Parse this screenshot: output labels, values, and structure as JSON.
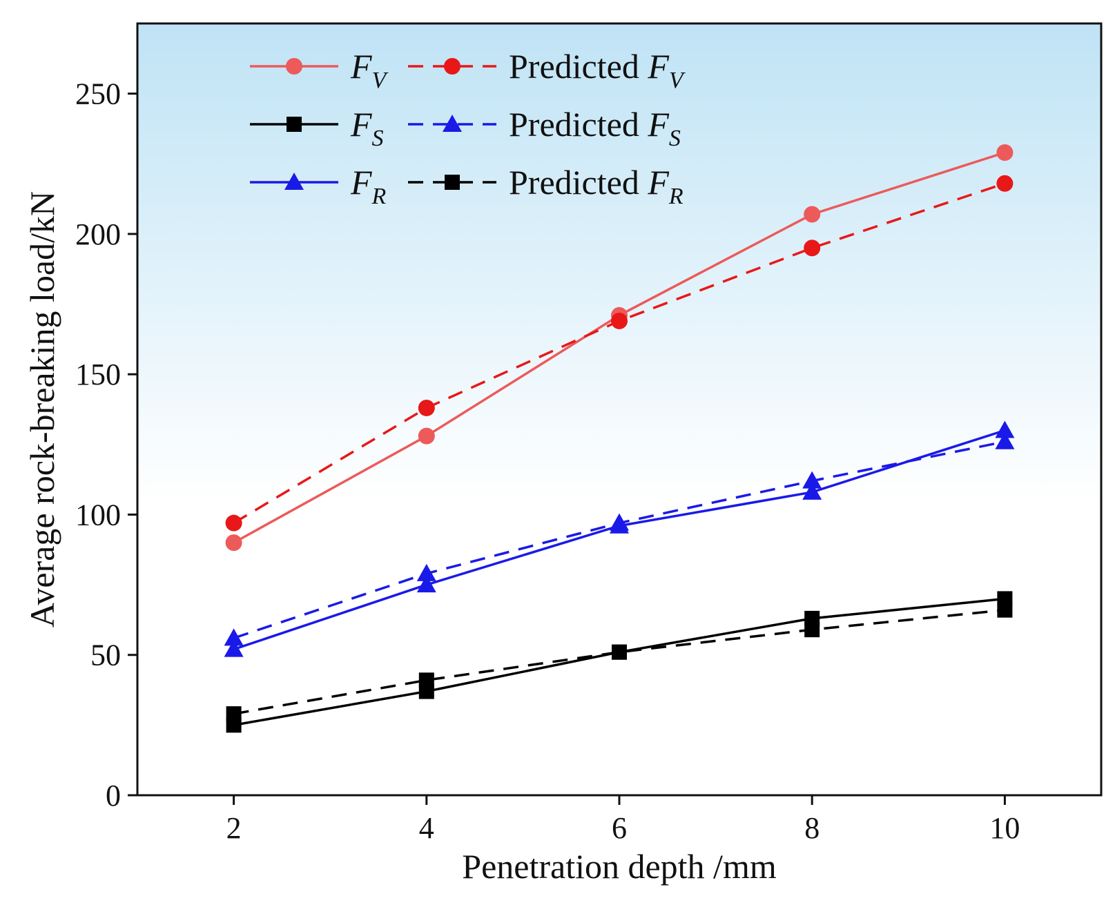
{
  "chart_data": {
    "type": "line",
    "xlabel": "Penetration depth /mm",
    "ylabel": "Average rock-breaking load/kN",
    "xlim": [
      1,
      11
    ],
    "ylim": [
      0,
      275
    ],
    "xticks": [
      2,
      4,
      6,
      8,
      10
    ],
    "yticks": [
      0,
      50,
      100,
      150,
      200,
      250
    ],
    "background": "vertical gradient light blue (#bfe3f5) at top to white at bottom",
    "grid": false,
    "legend_position": "top-left",
    "series": [
      {
        "name": "F_V",
        "symbol": "F",
        "sub": "V",
        "color": "#ec5a5a",
        "dash": "solid",
        "marker": "circle",
        "x": [
          2,
          4,
          6,
          8,
          10
        ],
        "y": [
          90,
          128,
          171,
          207,
          229
        ]
      },
      {
        "name": "Predicted F_V",
        "prefix": "Predicted ",
        "symbol": "F",
        "sub": "V",
        "color": "#e81818",
        "dash": "dashed",
        "marker": "circle",
        "x": [
          2,
          4,
          6,
          8,
          10
        ],
        "y": [
          97,
          138,
          169,
          195,
          218
        ]
      },
      {
        "name": "F_S",
        "symbol": "F",
        "sub": "S",
        "color": "#000000",
        "dash": "solid",
        "marker": "square",
        "x": [
          2,
          4,
          6,
          8,
          10
        ],
        "y": [
          25,
          37,
          51,
          63,
          70
        ]
      },
      {
        "name": "Predicted F_S",
        "prefix": "Predicted ",
        "symbol": "F",
        "sub": "S",
        "color": "#1a1ae8",
        "dash": "dashed",
        "marker": "triangle",
        "x": [
          2,
          4,
          6,
          8,
          10
        ],
        "y": [
          56,
          79,
          97,
          112,
          126
        ]
      },
      {
        "name": "F_R",
        "symbol": "F",
        "sub": "R",
        "color": "#1a1ae8",
        "dash": "solid",
        "marker": "triangle",
        "x": [
          2,
          4,
          6,
          8,
          10
        ],
        "y": [
          52,
          75,
          96,
          108,
          130
        ]
      },
      {
        "name": "Predicted F_R",
        "prefix": "Predicted ",
        "symbol": "F",
        "sub": "R",
        "color": "#000000",
        "dash": "dashed",
        "marker": "square",
        "x": [
          2,
          4,
          6,
          8,
          10
        ],
        "y": [
          29,
          41,
          51,
          59,
          66
        ]
      }
    ]
  }
}
